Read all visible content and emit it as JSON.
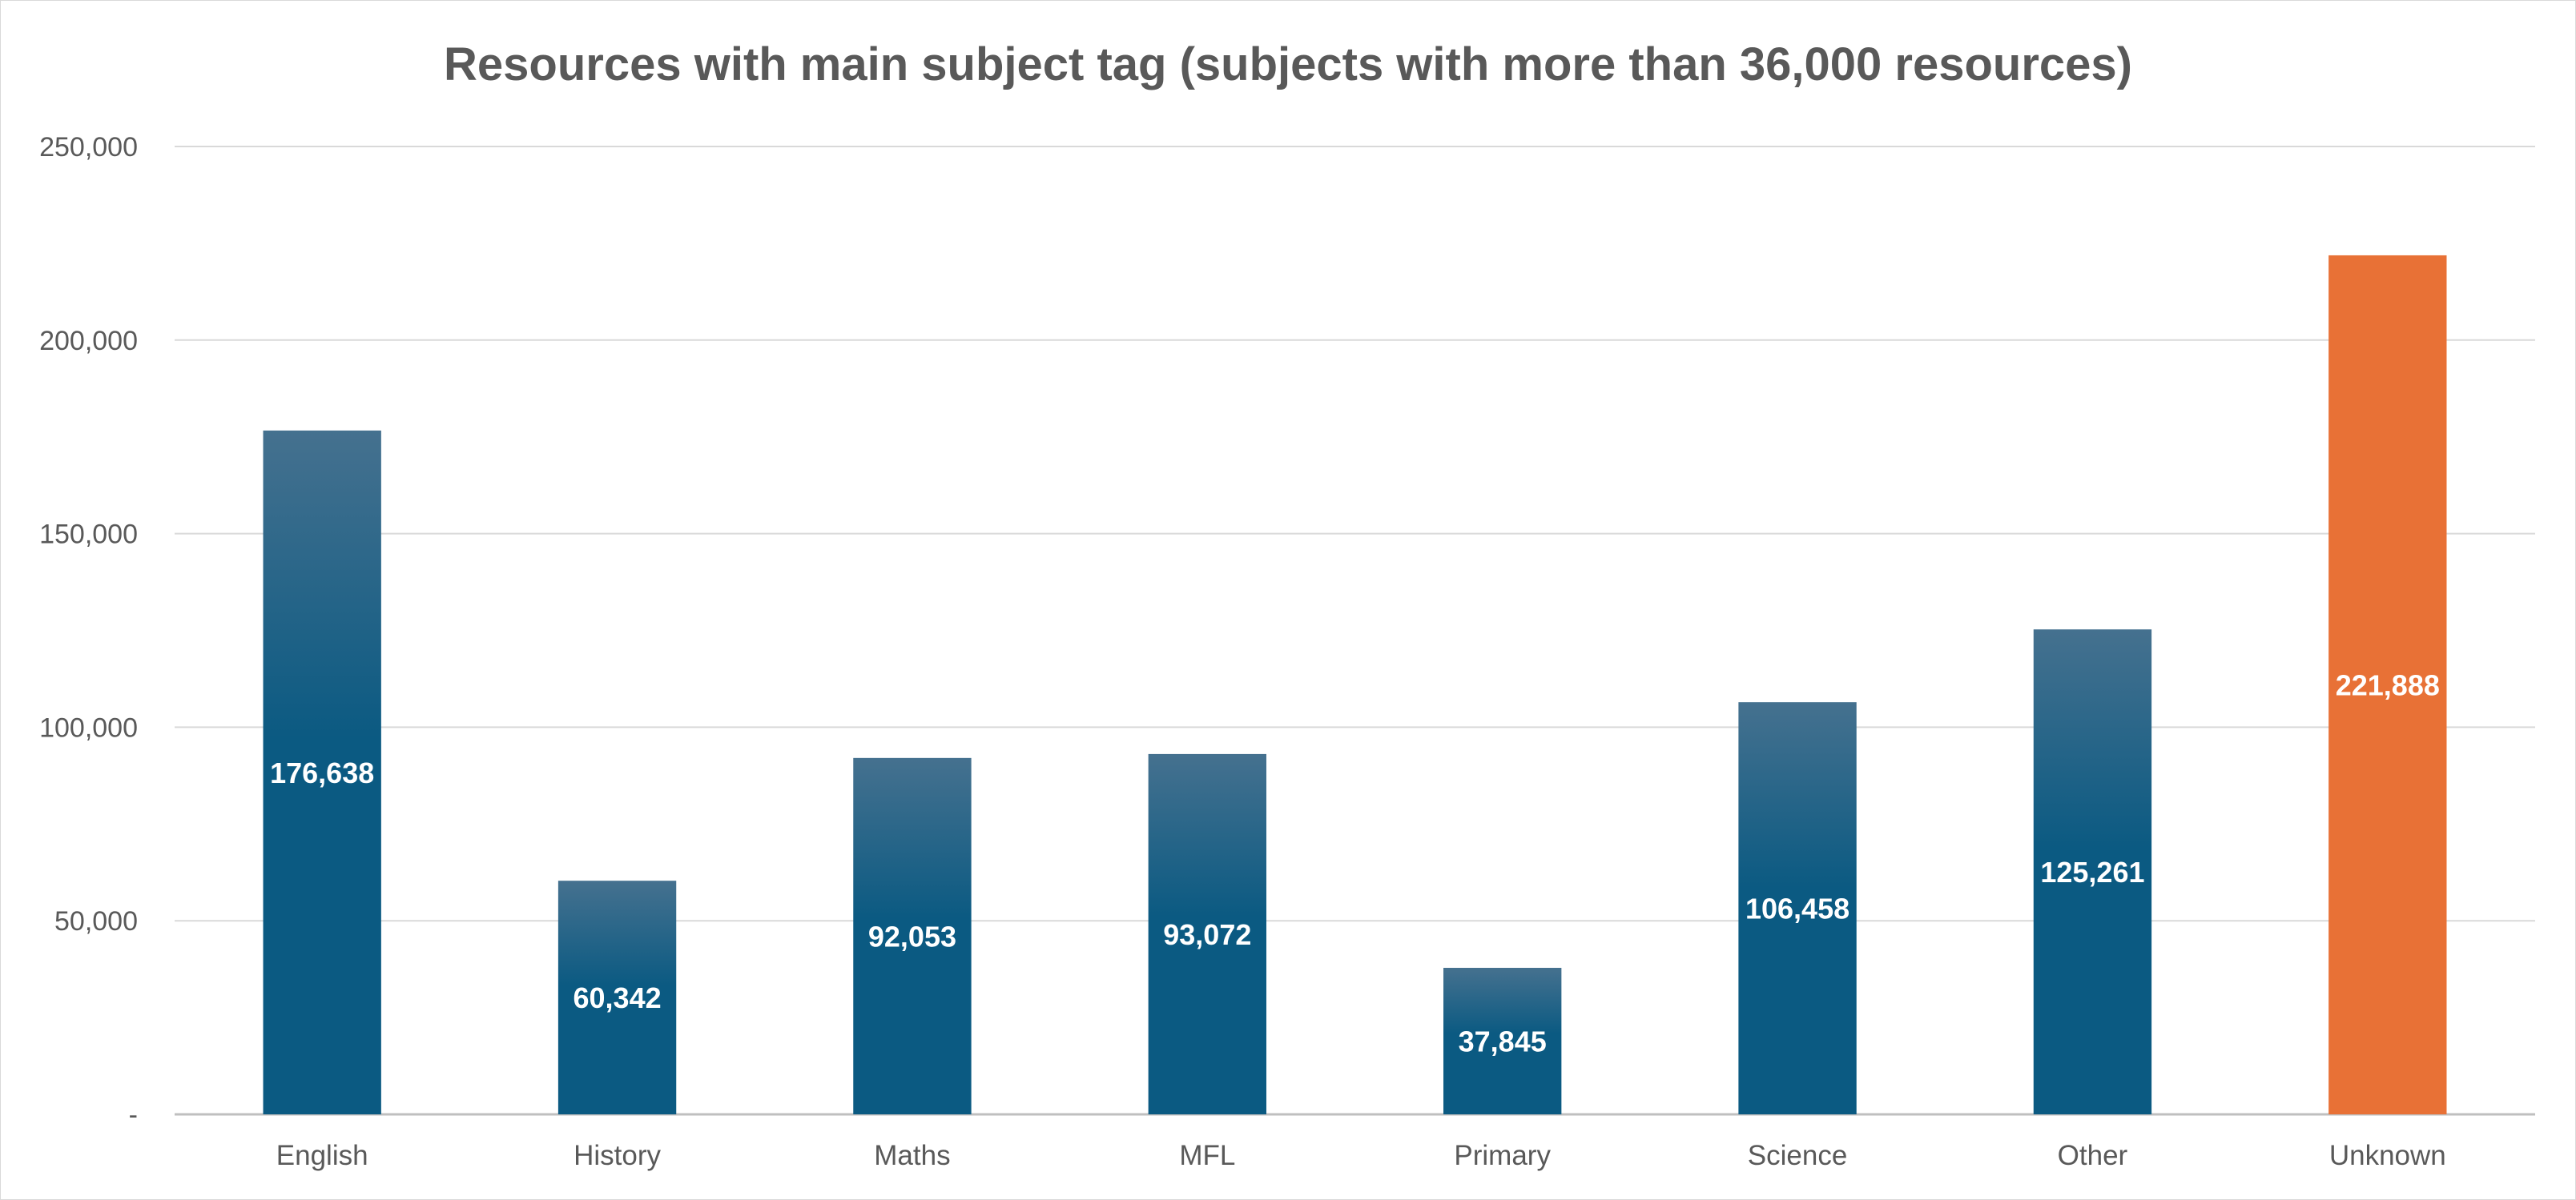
{
  "chart_data": {
    "type": "bar",
    "title": "Resources with main subject tag (subjects with more than 36,000 resources)",
    "xlabel": "",
    "ylabel": "",
    "categories": [
      "English",
      "History",
      "Maths",
      "MFL",
      "Primary",
      "Science",
      "Other",
      "Unknown"
    ],
    "values": [
      176638,
      60342,
      92053,
      93072,
      37845,
      106458,
      125261,
      221888
    ],
    "value_labels": [
      "176,638",
      "60,342",
      "92,053",
      "93,072",
      "37,845",
      "106,458",
      "125,261",
      "221,888"
    ],
    "ylim": [
      0,
      250000
    ],
    "yticks": [
      0,
      50000,
      100000,
      150000,
      200000,
      250000
    ],
    "ytick_labels": [
      "-",
      "50,000",
      "100,000",
      "150,000",
      "200,000",
      "250,000"
    ],
    "grid": true,
    "legend": "none",
    "colors": {
      "bar_top": "#45718f",
      "bar_bottom": "#0b5a82",
      "highlight_bar": "#e87136",
      "highlight_category": "Unknown",
      "gridline": "#d9d9d9",
      "axis": "#bfbfbf",
      "text": "#595959",
      "data_label": "#ffffff"
    }
  }
}
